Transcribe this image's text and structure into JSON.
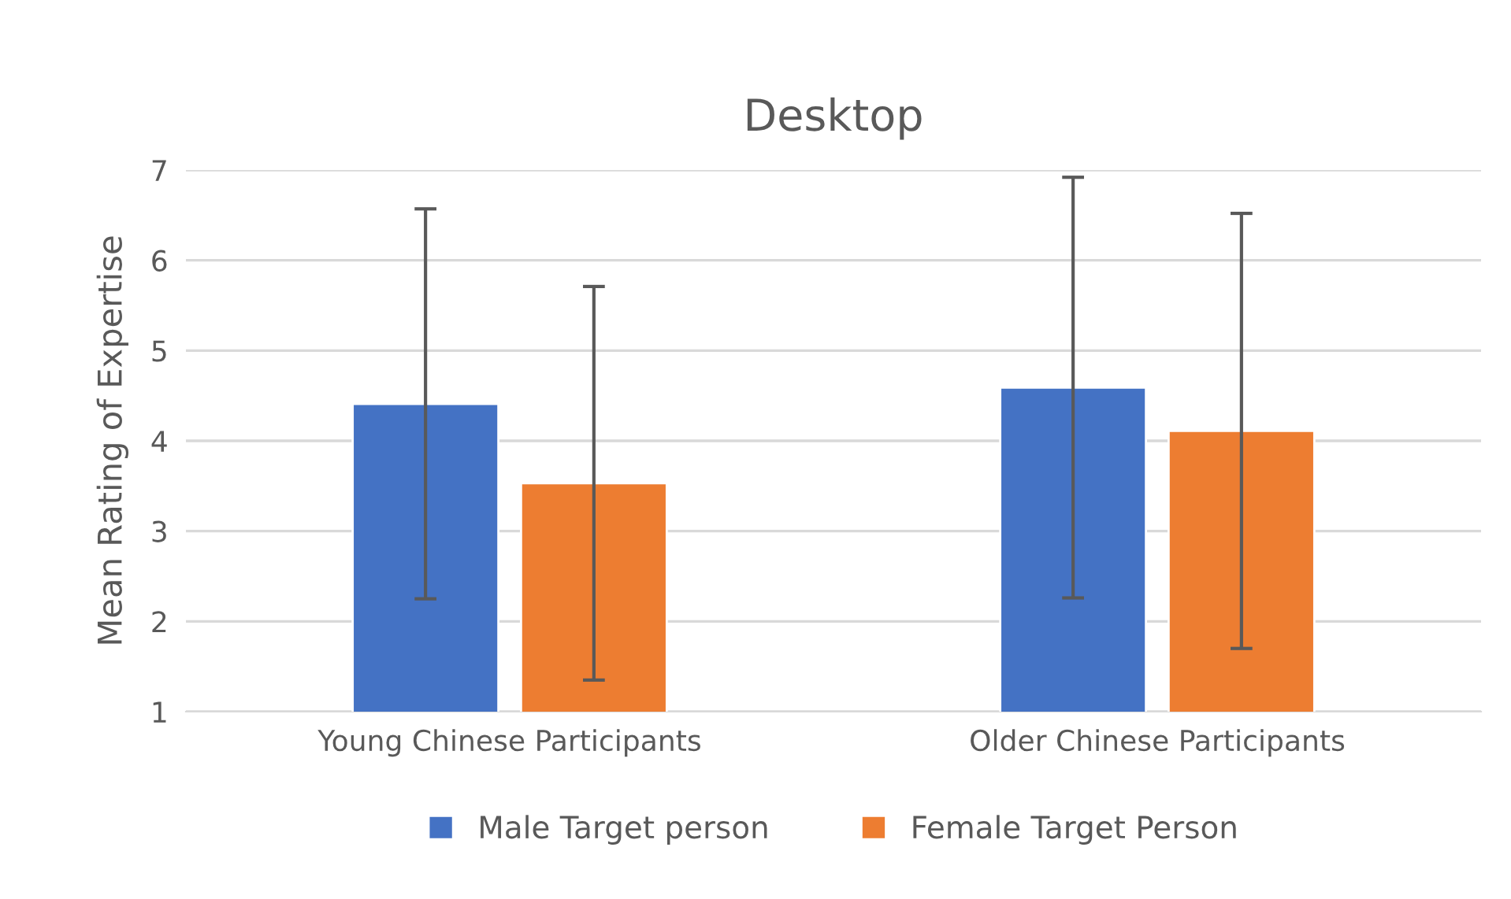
{
  "chart_data": {
    "type": "bar",
    "title": "Desktop",
    "ylabel": "Mean Rating of Expertise",
    "categories": [
      "Young Chinese Participants",
      "Older Chinese Participants"
    ],
    "series": [
      {
        "name": "Male Target person",
        "color": "#4472c4",
        "values": [
          4.41,
          4.59
        ],
        "errors": [
          2.16,
          2.33
        ]
      },
      {
        "name": "Female Target Person",
        "color": "#ed7d31",
        "values": [
          3.53,
          4.11
        ],
        "errors": [
          2.18,
          2.41
        ]
      }
    ],
    "ylim": [
      1,
      7
    ],
    "yticks": [
      1,
      2,
      3,
      4,
      5,
      6,
      7
    ],
    "grid": "y",
    "legend": "bottom"
  }
}
